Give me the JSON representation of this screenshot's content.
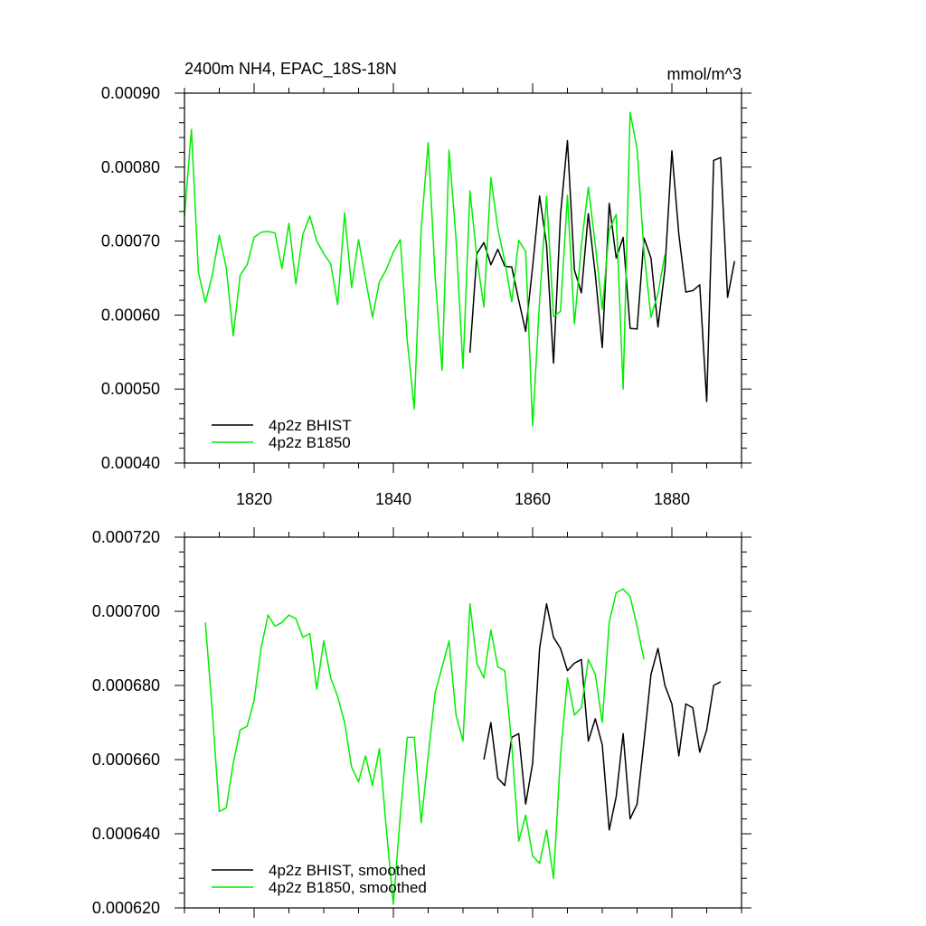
{
  "chart_data": [
    {
      "type": "line",
      "title": "2400m NH4, EPAC_18S-18N",
      "units": "mmol/m^3",
      "xlabel": "",
      "ylabel": "",
      "xlim": [
        1810,
        1890
      ],
      "ylim": [
        0.0004,
        0.0009
      ],
      "x_ticks": [
        1820,
        1840,
        1860,
        1880
      ],
      "x_tick_labels": [
        "1820",
        "1840",
        "1860",
        "1880"
      ],
      "y_ticks": [
        0.0004,
        0.0005,
        0.0006,
        0.0007,
        0.0008,
        0.0009
      ],
      "y_tick_labels": [
        "0.00040",
        "0.00050",
        "0.00060",
        "0.00070",
        "0.00080",
        "0.00090"
      ],
      "legend_position": "bottom-left",
      "series": [
        {
          "name": "4p2z BHIST",
          "color": "#000000",
          "x": [
            1851,
            1852,
            1853,
            1854,
            1855,
            1856,
            1857,
            1858,
            1859,
            1860,
            1861,
            1862,
            1863,
            1864,
            1865,
            1866,
            1867,
            1868,
            1869,
            1870,
            1871,
            1872,
            1873,
            1874,
            1875,
            1876,
            1877,
            1878,
            1879,
            1880,
            1881,
            1882,
            1883,
            1884,
            1885,
            1886,
            1887,
            1888,
            1889
          ],
          "values": [
            0.000549,
            0.000683,
            0.000698,
            0.000668,
            0.000689,
            0.000666,
            0.000665,
            0.00062,
            0.000578,
            0.000665,
            0.000761,
            0.000695,
            0.000535,
            0.000735,
            0.000836,
            0.000661,
            0.00063,
            0.000737,
            0.000655,
            0.000556,
            0.000751,
            0.000677,
            0.000705,
            0.000582,
            0.000581,
            0.000704,
            0.000677,
            0.000584,
            0.000662,
            0.000822,
            0.000709,
            0.000631,
            0.000633,
            0.000641,
            0.000483,
            0.000809,
            0.000813,
            0.000624,
            0.000673
          ]
        },
        {
          "name": "4p2z B1850",
          "color": "#00ee00",
          "x": [
            1810,
            1811,
            1812,
            1813,
            1814,
            1815,
            1816,
            1817,
            1818,
            1819,
            1820,
            1821,
            1822,
            1823,
            1824,
            1825,
            1826,
            1827,
            1828,
            1829,
            1830,
            1831,
            1832,
            1833,
            1834,
            1835,
            1836,
            1837,
            1838,
            1839,
            1840,
            1841,
            1842,
            1843,
            1844,
            1845,
            1846,
            1847,
            1848,
            1849,
            1850,
            1851,
            1852,
            1853,
            1854,
            1855,
            1856,
            1857,
            1858,
            1859,
            1860,
            1861,
            1862,
            1863,
            1864,
            1865,
            1866,
            1867,
            1868,
            1869,
            1870,
            1871,
            1872,
            1873,
            1874,
            1875,
            1876,
            1877,
            1878,
            1879
          ],
          "values": [
            0.000733,
            0.000851,
            0.000658,
            0.000617,
            0.000654,
            0.000708,
            0.000664,
            0.000572,
            0.000654,
            0.000668,
            0.000705,
            0.000712,
            0.000713,
            0.000711,
            0.000663,
            0.000724,
            0.000642,
            0.000709,
            0.000734,
            0.0007,
            0.000683,
            0.000669,
            0.000614,
            0.000738,
            0.000637,
            0.000702,
            0.000649,
            0.000597,
            0.000645,
            0.000662,
            0.000685,
            0.000702,
            0.000565,
            0.000473,
            0.000717,
            0.000833,
            0.000652,
            0.000525,
            0.000823,
            0.000703,
            0.000528,
            0.000768,
            0.000677,
            0.000611,
            0.000786,
            0.000717,
            0.000673,
            0.000618,
            0.000701,
            0.000686,
            0.00045,
            0.000619,
            0.000761,
            0.000598,
            0.000605,
            0.000762,
            0.000588,
            0.000694,
            0.000773,
            0.000695,
            0.000608,
            0.000715,
            0.000736,
            0.0005,
            0.000874,
            0.000825,
            0.000685,
            0.000597,
            0.000629,
            0.000682
          ]
        }
      ]
    },
    {
      "type": "line",
      "title": "",
      "xlabel": "",
      "ylabel": "",
      "xlim": [
        1810,
        1890
      ],
      "ylim": [
        0.00062,
        0.00072
      ],
      "x_ticks": [
        1820,
        1840,
        1860,
        1880
      ],
      "y_ticks": [
        0.00062,
        0.00064,
        0.00066,
        0.00068,
        0.0007,
        0.00072
      ],
      "y_tick_labels": [
        "0.000620",
        "0.000640",
        "0.000660",
        "0.000680",
        "0.000700",
        "0.000720"
      ],
      "legend_position": "bottom-left",
      "series": [
        {
          "name": "4p2z BHIST, smoothed",
          "color": "#000000",
          "x": [
            1853,
            1854,
            1855,
            1856,
            1857,
            1858,
            1859,
            1860,
            1861,
            1862,
            1863,
            1864,
            1865,
            1866,
            1867,
            1868,
            1869,
            1870,
            1871,
            1872,
            1873,
            1874,
            1875,
            1876,
            1877,
            1878,
            1879,
            1880,
            1881,
            1882,
            1883,
            1884,
            1885,
            1886,
            1887
          ],
          "values": [
            0.00066,
            0.00067,
            0.000655,
            0.000653,
            0.000666,
            0.000667,
            0.000648,
            0.000659,
            0.00069,
            0.000702,
            0.000693,
            0.00069,
            0.000684,
            0.000686,
            0.000687,
            0.000665,
            0.000671,
            0.000664,
            0.000641,
            0.00065,
            0.000667,
            0.000644,
            0.000648,
            0.000665,
            0.000683,
            0.00069,
            0.00068,
            0.000675,
            0.000661,
            0.000675,
            0.000674,
            0.000662,
            0.000668,
            0.00068,
            0.000681
          ]
        },
        {
          "name": "4p2z B1850, smoothed",
          "color": "#00ee00",
          "x": [
            1813,
            1814,
            1815,
            1816,
            1817,
            1818,
            1819,
            1820,
            1821,
            1822,
            1823,
            1824,
            1825,
            1826,
            1827,
            1828,
            1829,
            1830,
            1831,
            1832,
            1833,
            1834,
            1835,
            1836,
            1837,
            1838,
            1839,
            1840,
            1841,
            1842,
            1843,
            1844,
            1845,
            1846,
            1847,
            1848,
            1849,
            1850,
            1851,
            1852,
            1853,
            1854,
            1855,
            1856,
            1857,
            1858,
            1859,
            1860,
            1861,
            1862,
            1863,
            1864,
            1865,
            1866,
            1867,
            1868,
            1869,
            1870,
            1871,
            1872,
            1873,
            1874,
            1875,
            1876
          ],
          "values": [
            0.000697,
            0.000673,
            0.000646,
            0.000647,
            0.000659,
            0.000668,
            0.000669,
            0.000676,
            0.00069,
            0.000699,
            0.000696,
            0.000697,
            0.000699,
            0.000698,
            0.000693,
            0.000694,
            0.000679,
            0.000692,
            0.000682,
            0.000677,
            0.00067,
            0.000658,
            0.000654,
            0.000661,
            0.000653,
            0.000663,
            0.000641,
            0.000621,
            0.000645,
            0.000666,
            0.000666,
            0.000643,
            0.000661,
            0.000678,
            0.000685,
            0.000692,
            0.000672,
            0.000665,
            0.000702,
            0.000686,
            0.000682,
            0.000695,
            0.000685,
            0.000684,
            0.000664,
            0.000638,
            0.000645,
            0.000634,
            0.000632,
            0.000641,
            0.000628,
            0.000661,
            0.000682,
            0.000672,
            0.000674,
            0.000687,
            0.000683,
            0.00067,
            0.000697,
            0.000705,
            0.000706,
            0.000704,
            0.000696,
            0.000687
          ]
        }
      ]
    }
  ]
}
